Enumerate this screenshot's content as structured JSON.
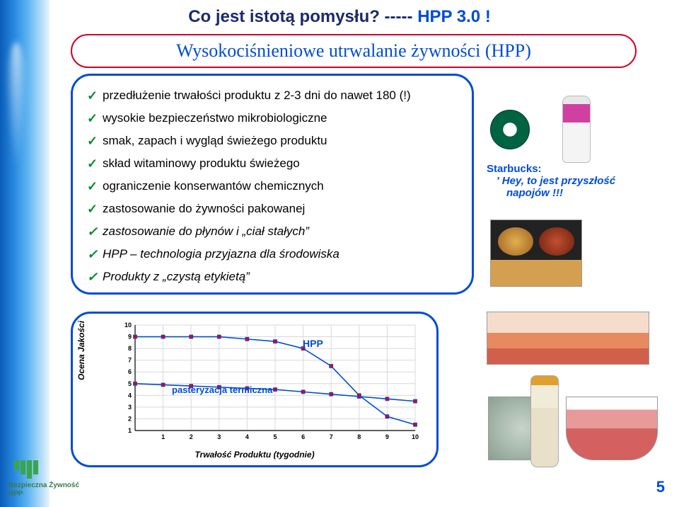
{
  "title": {
    "part1": "Co jest istotą pomysłu? -----",
    "part2": "HPP  3.0 !"
  },
  "subtitle": "Wysokociśnieniowe  utrwalanie żywności (HPP)",
  "bullets": [
    {
      "text": "przedłużenie trwałości produktu z 2-3 dni do nawet 180 (!)",
      "italic": false
    },
    {
      "text": "wysokie bezpieczeństwo mikrobiologiczne",
      "italic": false
    },
    {
      "text": "smak, zapach i wygląd świeżego produktu",
      "italic": false
    },
    {
      "text": "skład witaminowy produktu świeżego",
      "italic": false
    },
    {
      "text": "ograniczenie konserwantów chemicznych",
      "italic": false
    },
    {
      "text": "zastosowanie do żywności pakowanej",
      "italic": false
    },
    {
      "text": "zastosowanie do płynów i „ciał stałych”",
      "italic": true
    },
    {
      "text": "HPP – technologia przyjazna dla środowiska",
      "italic": true
    },
    {
      "text": "Produkty z „czystą etykietą”",
      "italic": true
    }
  ],
  "starbucks": {
    "title": "Starbucks:",
    "quote_l1": "' Hey, to jest przyszłość",
    "quote_l2": "napojów !!!"
  },
  "chart": {
    "y_label": "Ocena Jakości",
    "x_label": "Trwałość Produktu  (tygodnie)",
    "y_ticks": [
      "1",
      "2",
      "3",
      "4",
      "5",
      "6",
      "7",
      "8",
      "9",
      "10"
    ],
    "x_ticks": [
      "1",
      "2",
      "3",
      "4",
      "5",
      "6",
      "7",
      "8",
      "9",
      "10"
    ],
    "ylim": [
      1,
      10
    ],
    "xlim": [
      0,
      10
    ],
    "hpp": {
      "label": "HPP",
      "color": "#004cd6",
      "x": [
        0,
        1,
        2,
        3,
        4,
        5,
        6,
        7,
        8,
        9,
        10
      ],
      "y": [
        9,
        9,
        9,
        9,
        8.8,
        8.6,
        8,
        6.5,
        4,
        2.2,
        1.5
      ]
    },
    "past": {
      "label": "pasteryzacja termiczna",
      "color": "#004cd6",
      "x": [
        0,
        1,
        2,
        3,
        4,
        5,
        6,
        7,
        8,
        9,
        10
      ],
      "y": [
        5,
        4.9,
        4.8,
        4.7,
        4.6,
        4.5,
        4.3,
        4.1,
        3.9,
        3.7,
        3.5
      ]
    },
    "marker_fill": "#d1002a",
    "grid_color": "#d8d8d8",
    "line_width": 1.6
  },
  "logo": {
    "line1": "Bezpieczna Żywność",
    "line2": "HPP"
  },
  "page_number": "5"
}
